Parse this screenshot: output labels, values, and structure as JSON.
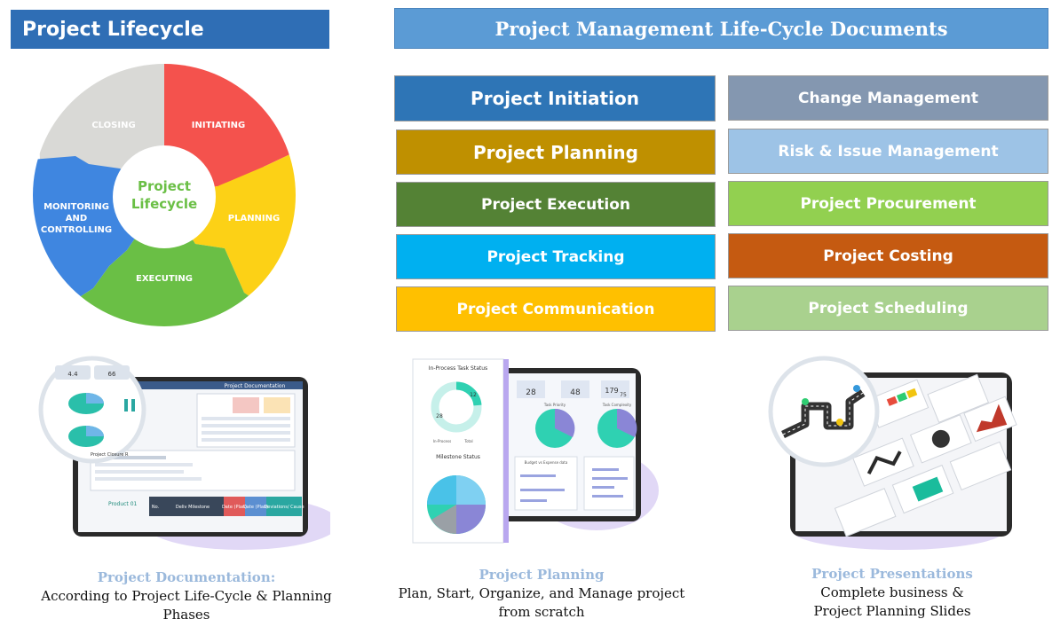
{
  "header_left": "Project Lifecycle",
  "header_right": "Project Management Life-Cycle Documents",
  "wheel": {
    "center_line1": "Project",
    "center_line2": "Lifecycle",
    "segments": [
      {
        "label": "CLOSING",
        "color": "#d9d9d6"
      },
      {
        "label": "INITIATING",
        "color": "#f4524d"
      },
      {
        "label": "PLANNING",
        "color": "#fcd116"
      },
      {
        "label": "EXECUTING",
        "color": "#6abf45"
      },
      {
        "label": "MONITORING AND CONTROLLING",
        "lines": [
          "MONITORING",
          "AND",
          "CONTROLLING"
        ],
        "color": "#3f86e0"
      }
    ],
    "center_text_color": "#6abf45"
  },
  "documents_left": [
    {
      "label": "Project Initiation",
      "color": "#2e75b6"
    },
    {
      "label": "Project Planning",
      "color": "#bf9000"
    },
    {
      "label": "Project Execution",
      "color": "#548235"
    },
    {
      "label": "Project Tracking",
      "color": "#00b0f0"
    },
    {
      "label": "Project Communication",
      "color": "#ffc000"
    }
  ],
  "documents_right": [
    {
      "label": "Change Management",
      "color": "#8497b0"
    },
    {
      "label": "Risk & Issue Management",
      "color": "#9dc3e6"
    },
    {
      "label": "Project Procurement",
      "color": "#92d050"
    },
    {
      "label": "Project Costing",
      "color": "#c55a11"
    },
    {
      "label": "Project Scheduling",
      "color": "#a9d18e"
    }
  ],
  "mockups": {
    "documentation": {
      "window_title": "Project Documentation",
      "badge1": "4.4",
      "badge2": "66",
      "closure_title": "Project Closure R",
      "product_label": "Product 01",
      "columns": [
        "No.",
        "Deliv Milestone",
        "Date (Plan)",
        "Date (Plan)",
        "Deviations/ Cause"
      ]
    },
    "planning": {
      "side_title": "In-Process Task Status",
      "donut_values": [
        "12",
        "28"
      ],
      "legend": [
        "In-Process",
        "Total"
      ],
      "milestone_title": "Milestone Status",
      "stats": [
        "28",
        "48",
        "179"
      ],
      "stat_extra": "75",
      "panel_titles": [
        "Task Priority",
        "Task Complexity",
        "Budget vs Expense data"
      ]
    },
    "presentations": {}
  },
  "captions": [
    {
      "title": "Project Documentation:",
      "lines": [
        "According to Project Life-Cycle & Planning",
        "Phases"
      ]
    },
    {
      "title": "Project Planning",
      "lines": [
        "Plan, Start, Organize, and Manage project",
        "from scratch"
      ]
    },
    {
      "title": "Project Presentations",
      "lines": [
        "Complete business &",
        "Project Planning Slides"
      ]
    }
  ]
}
